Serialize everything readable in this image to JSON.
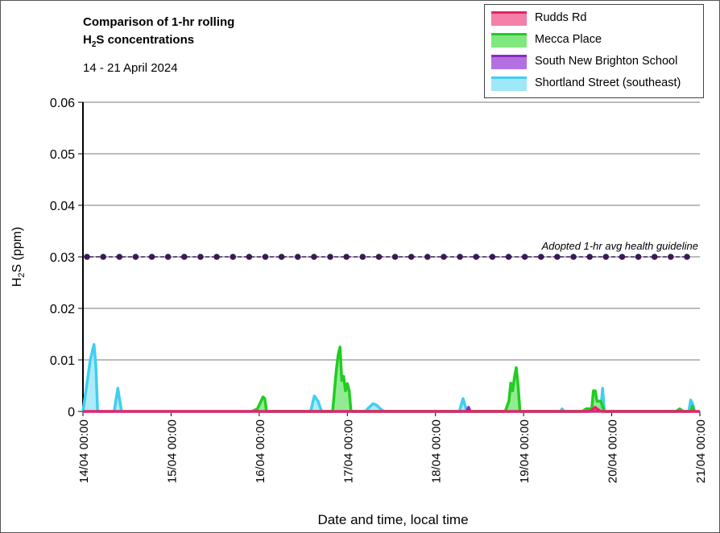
{
  "chart_data": {
    "type": "area",
    "title_lines": [
      "Comparison of 1-hr rolling",
      "H2S concentrations"
    ],
    "subtitle": "14 - 21 April 2024",
    "xlabel": "Date and time, local time",
    "ylabel": "H2S (ppm)",
    "ylim": [
      0,
      0.06
    ],
    "yticks": [
      "0",
      "0.01",
      "0.02",
      "0.03",
      "0.04",
      "0.05",
      "0.06"
    ],
    "xlim": [
      "14/04 00:00",
      "21/04 00:00"
    ],
    "xticks": [
      "14/04 00:00",
      "15/04 00:00",
      "16/04 00:00",
      "17/04 00:00",
      "18/04 00:00",
      "19/04 00:00",
      "20/04 00:00",
      "21/04 00:00"
    ],
    "grid": true,
    "legend_position": "top-right",
    "guideline": {
      "label": "Adopted 1-hr avg health guideline",
      "value": 0.03,
      "color": "#3b1a52"
    },
    "series": [
      {
        "name": "Rudds Rd",
        "color": "#e6226b",
        "fill": "#f47fa8",
        "x": [
          "14/04 00:00",
          "19/04 18:00",
          "19/04 19:00",
          "19/04 19:30",
          "19/04 20:00",
          "19/04 21:00",
          "21/04 00:00"
        ],
        "values": [
          0,
          0,
          0.0005,
          0.0008,
          0.0005,
          0,
          0
        ]
      },
      {
        "name": "Mecca Place",
        "color": "#22cc22",
        "fill": "#7fe87f",
        "x": [
          "15/04 22:00",
          "15/04 23:30",
          "16/04 00:30",
          "16/04 01:00",
          "16/04 01:30",
          "16/04 02:00",
          "16/04 20:00",
          "16/04 20:30",
          "16/04 21:00",
          "16/04 21:30",
          "16/04 22:00",
          "16/04 22:30",
          "16/04 23:00",
          "16/04 23:30",
          "17/04 00:00",
          "17/04 00:30",
          "17/04 01:00",
          "18/04 19:00",
          "18/04 20:00",
          "18/04 20:30",
          "18/04 21:00",
          "18/04 21:30",
          "18/04 22:00",
          "18/04 22:30",
          "18/04 23:00",
          "19/04 16:00",
          "19/04 17:00",
          "19/04 18:00",
          "19/04 18:30",
          "19/04 19:00",
          "19/04 19:30",
          "19/04 20:00",
          "19/04 21:00",
          "19/04 21:30",
          "19/04 22:00",
          "20/04 17:30",
          "20/04 18:30",
          "20/04 19:30",
          "20/04 21:30",
          "20/04 22:00",
          "20/04 22:30"
        ],
        "values": [
          0,
          0.0005,
          0.002,
          0.0028,
          0.0025,
          0,
          0,
          0.004,
          0.008,
          0.011,
          0.0125,
          0.006,
          0.0068,
          0.004,
          0.0054,
          0.004,
          0,
          0,
          0.002,
          0.0055,
          0.004,
          0.0065,
          0.0085,
          0.005,
          0,
          0,
          0.0005,
          0.0005,
          0,
          0.004,
          0.004,
          0.002,
          0.002,
          0.001,
          0,
          0,
          0.0005,
          0,
          0,
          0.001,
          0
        ]
      },
      {
        "name": "South New Brighton School",
        "color": "#8e2bbf",
        "fill": "#b46fe0",
        "x": [
          "18/04 08:30",
          "18/04 09:00",
          "18/04 09:30"
        ],
        "values": [
          0,
          0.0008,
          0
        ]
      },
      {
        "name": "Shortland Street (southeast)",
        "color": "#3fcfef",
        "fill": "#9fe8f8",
        "x": [
          "14/04 00:00",
          "14/04 01:00",
          "14/04 02:00",
          "14/04 03:00",
          "14/04 03:30",
          "14/04 04:00",
          "14/04 08:30",
          "14/04 09:30",
          "14/04 10:30",
          "16/04 14:00",
          "16/04 15:00",
          "16/04 16:00",
          "16/04 17:00",
          "17/04 05:00",
          "17/04 05:30",
          "17/04 07:00",
          "17/04 08:00",
          "17/04 09:00",
          "17/04 10:00",
          "18/04 06:30",
          "18/04 07:30",
          "18/04 08:30",
          "19/04 10:00",
          "19/04 10:30",
          "19/04 11:00",
          "19/04 21:00",
          "19/04 21:30",
          "19/04 22:00",
          "20/04 21:00",
          "20/04 21:30",
          "20/04 22:00",
          "20/04 22:30"
        ],
        "values": [
          0,
          0.005,
          0.01,
          0.013,
          0.009,
          0,
          0,
          0.0045,
          0,
          0,
          0.003,
          0.002,
          0,
          0,
          0.0005,
          0.0015,
          0.0012,
          0.0005,
          0,
          0,
          0.0025,
          0,
          0,
          0.0005,
          0,
          0,
          0.0045,
          0,
          0,
          0.0022,
          0.0015,
          0
        ]
      }
    ]
  }
}
